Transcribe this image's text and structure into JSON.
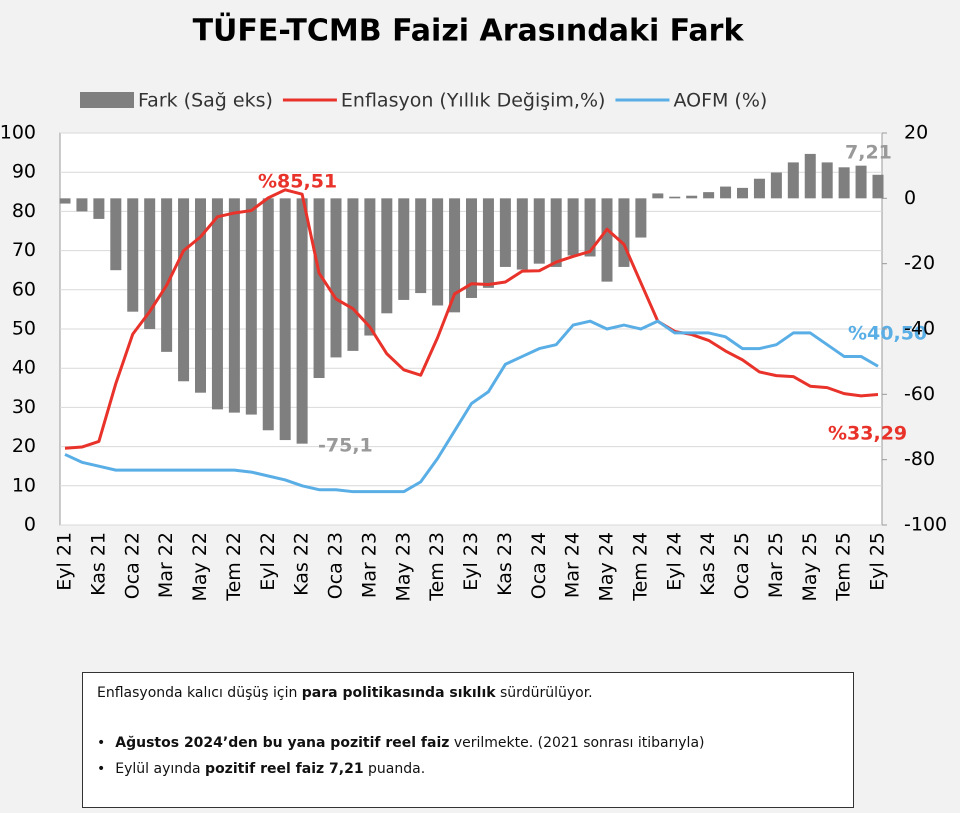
{
  "chart_data": {
    "type": "combo",
    "title": "TÜFE-TCMB Faizi Arasındaki Fark",
    "categories": [
      "Eyl 21",
      null,
      "Kas 21",
      null,
      "Oca 22",
      null,
      "Mar 22",
      null,
      "May 22",
      null,
      "Tem 22",
      null,
      "Eyl 22",
      null,
      "Kas 22",
      null,
      "Oca 23",
      null,
      "Mar 23",
      null,
      "May 23",
      null,
      "Tem 23",
      null,
      "Eyl 23",
      null,
      "Kas 23",
      null,
      "Oca 24",
      null,
      "Mar 24",
      null,
      "May 24",
      null,
      "Tem 24",
      null,
      "Eyl 24",
      null,
      "Kas 24",
      null,
      "Oca 25",
      null,
      "Mar 25",
      null,
      "May 25",
      null,
      "Tem 25",
      null,
      "Eyl 25"
    ],
    "series": [
      {
        "name": "Fark (Sağ eks)",
        "type": "bar",
        "axis": "y2",
        "color": "#7f7f7f",
        "values": [
          -1.6,
          -4,
          -6.3,
          -22,
          -34.7,
          -40,
          -47,
          -56,
          -59.5,
          -64.6,
          -65.6,
          -66.2,
          -71,
          -74,
          -75.1,
          -55,
          -48.7,
          -46.7,
          -42,
          -35.2,
          -31.1,
          -29,
          -32.8,
          -34.9,
          -30.5,
          -27.4,
          -21,
          -21.8,
          -20,
          -21,
          -17.5,
          -17.8,
          -25.5,
          -21,
          -12,
          1.5,
          0.5,
          0.8,
          1.9,
          3.6,
          3.2,
          6,
          7.9,
          11,
          13.6,
          11,
          9.5,
          10,
          7.21
        ]
      },
      {
        "name": "Enflasyon (Yıllık Değişim,%)",
        "type": "line",
        "color": "#e8322a",
        "values": [
          19.58,
          19.89,
          21.31,
          36.08,
          48.69,
          54.44,
          61.14,
          69.97,
          73.5,
          78.62,
          79.6,
          80.21,
          83.45,
          85.51,
          84.39,
          64.27,
          57.68,
          55.18,
          50.51,
          43.68,
          39.59,
          38.21,
          47.83,
          58.94,
          61.53,
          61.36,
          61.98,
          64.77,
          64.86,
          67.07,
          68.5,
          69.8,
          75.45,
          71.6,
          61.78,
          51.97,
          49.38,
          48.58,
          47.09,
          44.38,
          42.12,
          39.05,
          38.1,
          37.86,
          35.41,
          35.05,
          33.52,
          32.95,
          33.29
        ]
      },
      {
        "name": "AOFM (%)",
        "type": "line",
        "color": "#5aaee6",
        "values": [
          18,
          16,
          15,
          14,
          14,
          14,
          14,
          14,
          14,
          14,
          14,
          13.5,
          12.5,
          11.5,
          10,
          9,
          9,
          8.5,
          8.5,
          8.5,
          8.5,
          11,
          17,
          24,
          31,
          34,
          41,
          43,
          45,
          46,
          51,
          52,
          50,
          51,
          50,
          52,
          49,
          49,
          49,
          48,
          45,
          45,
          46,
          49,
          49,
          46,
          43,
          43,
          40.5
        ]
      }
    ],
    "ylim": [
      0,
      100
    ],
    "yticks": [
      0,
      10,
      20,
      30,
      40,
      50,
      60,
      70,
      80,
      90,
      100
    ],
    "y2lim": [
      -100,
      20
    ],
    "y2ticks": [
      -100,
      -80,
      -60,
      -40,
      -20,
      0,
      20
    ],
    "annotations": [
      "%85,51",
      "-75,1",
      "7,21",
      "%40,50",
      "%33,29"
    ]
  },
  "note": {
    "lines": [
      [
        {
          "text": "Enflasyonda kalıcı düşüş için ",
          "bold": false
        },
        {
          "text": "para politikasında sıkılık",
          "bold": true
        },
        {
          "text": " sürdürülüyor.",
          "bold": false
        }
      ],
      [
        {
          "text": "Ağustos 2024’den bu yana pozitif reel faiz",
          "bold": true
        },
        {
          "text": " verilmekte. (2021 sonrası itibarıyla)",
          "bold": false
        }
      ],
      [
        {
          "text": "Eylül ayında ",
          "bold": false
        },
        {
          "text": "pozitif reel faiz 7,21",
          "bold": true
        },
        {
          "text": " puanda.",
          "bold": false
        }
      ]
    ]
  }
}
